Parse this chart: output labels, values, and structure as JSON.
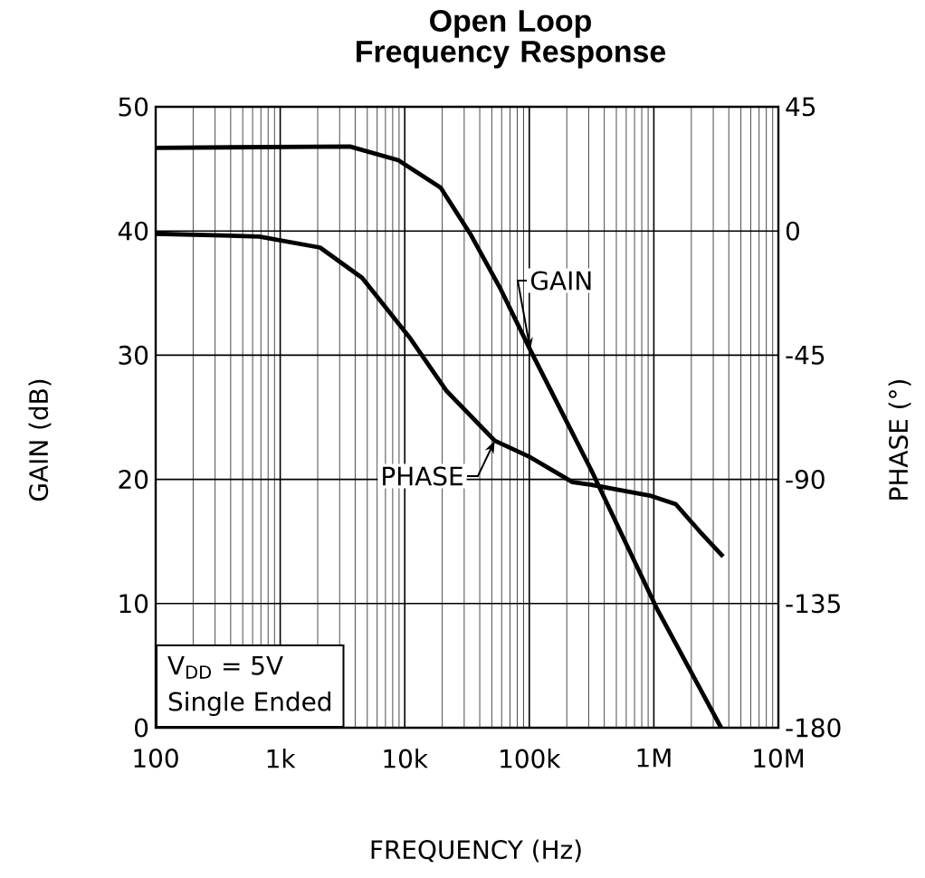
{
  "chart_data": {
    "type": "line",
    "title": "Open Loop Frequency Response",
    "xlabel": "FREQUENCY (Hz)",
    "ylabel": "GAIN (dB)",
    "y2label": "PHASE (°)",
    "log": "x",
    "grid": true,
    "xlim": [
      100,
      10000000
    ],
    "xticks": [
      100,
      {
        "value": 1000,
        "label": "1k"
      },
      {
        "value": 10000,
        "label": "10k"
      },
      {
        "value": 100000,
        "label": "100k"
      },
      {
        "value": 1000000,
        "label": "1M"
      },
      {
        "value": 10000000,
        "label": "10M"
      }
    ],
    "ylim": [
      0,
      50
    ],
    "yticks": [
      0,
      10,
      20,
      30,
      40,
      50
    ],
    "y2lim": [
      -180,
      45
    ],
    "y2ticks": [
      -180,
      -135,
      -90,
      -45,
      0,
      45
    ],
    "annotations": [
      "V$_{DD}$ = 5V",
      "Single Ended"
    ],
    "series": [
      {
        "name": "GAIN",
        "color": "#000000",
        "x": [
          100,
          3630,
          8870,
          19400,
          33900,
          59000,
          102000,
          316000,
          1070000,
          3470000
        ],
        "values": [
          46.7,
          46.8,
          45.7,
          43.5,
          39.7,
          35.3,
          30.4,
          20.7,
          9.5,
          0
        ]
      },
      {
        "name": "PHASE",
        "color": "#000000",
        "axis": "y2",
        "x": [
          100,
          680,
          2090,
          4550,
          11100,
          21700,
          52800,
          102000,
          222000,
          316000,
          955000,
          1500000,
          2350000,
          3600000
        ],
        "values": [
          -1,
          -2,
          -6,
          -17,
          -39,
          -58,
          -76,
          -82,
          -91,
          -92,
          -96,
          -99,
          -109,
          -118
        ]
      }
    ]
  }
}
